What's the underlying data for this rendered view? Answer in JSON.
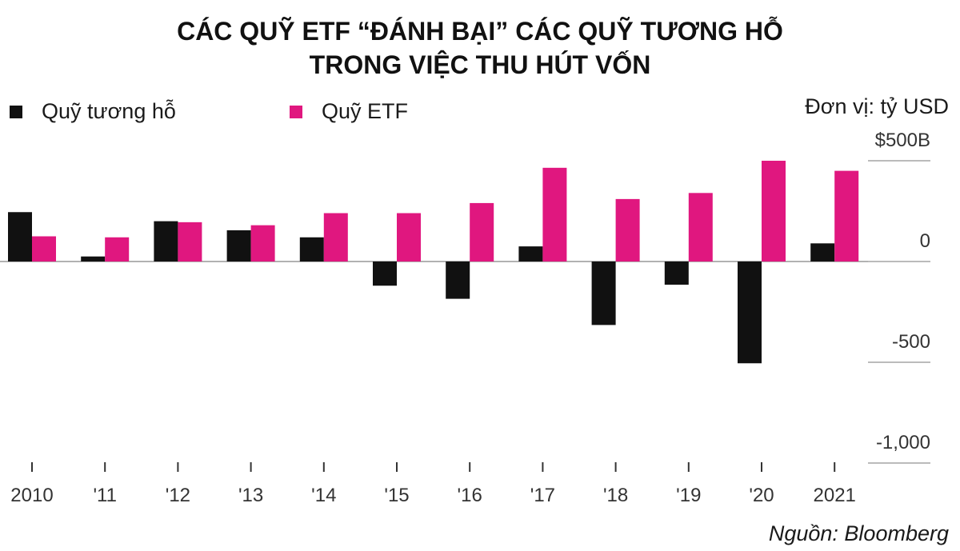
{
  "title_line1": "CÁC QUỸ ETF “ĐÁNH BẠI” CÁC QUỸ TƯƠNG HỖ",
  "title_line2": "TRONG VIỆC THU HÚT VỐN",
  "unit": "Đơn vị: tỷ USD",
  "source": "Nguồn: Bloomberg",
  "colors": {
    "mutual": "#111111",
    "etf": "#e0177f",
    "axis": "#bbbbbb"
  },
  "chart_data": {
    "type": "bar",
    "categories": [
      "2010",
      "'11",
      "'12",
      "'13",
      "'14",
      "'15",
      "'16",
      "'17",
      "'18",
      "'19",
      "'20",
      "2021"
    ],
    "series": [
      {
        "name": "Quỹ tương hỗ",
        "values": [
          245,
          25,
          200,
          155,
          120,
          -120,
          -185,
          75,
          -315,
          -115,
          -505,
          90
        ]
      },
      {
        "name": "Quỹ ETF",
        "values": [
          125,
          120,
          195,
          180,
          240,
          240,
          290,
          465,
          310,
          340,
          500,
          450
        ]
      }
    ],
    "ylim": [
      -1000,
      500
    ],
    "yticks": [
      500,
      0,
      -500,
      -1000
    ],
    "ytick_labels": [
      "$500B",
      "0",
      "-500",
      "-1,000"
    ],
    "grid": false,
    "legend_position": "top-left"
  }
}
